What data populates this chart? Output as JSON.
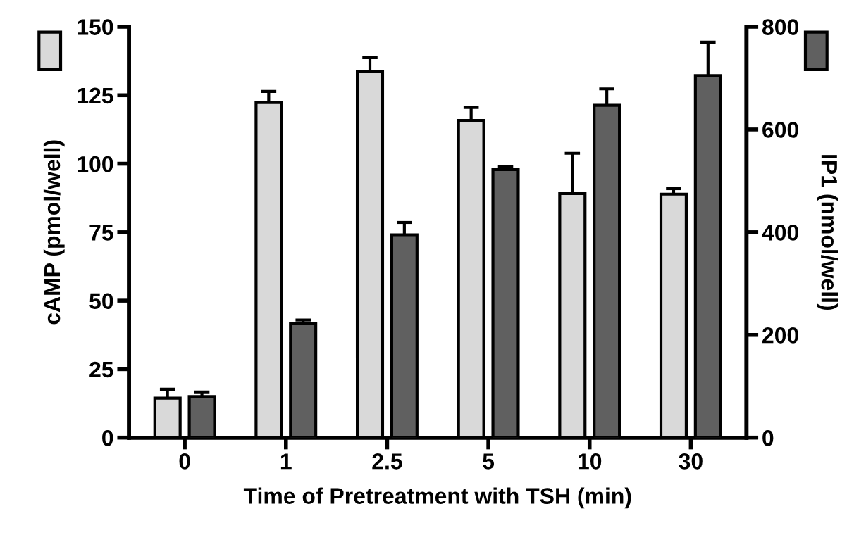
{
  "chart_data": {
    "type": "bar",
    "xlabel": "Time of Pretreatment with TSH (min)",
    "ylabel": "cAMP (pmol/well)",
    "y2label": "IP1 (nmol/well)",
    "categories": [
      "0",
      "1",
      "2.5",
      "5",
      "10",
      "30"
    ],
    "series": [
      {
        "color": "#d9d9d9",
        "values": [
          14.4,
          122.3,
          133.8,
          115.8,
          89.1,
          88.9
        ],
        "errors": [
          3.3,
          4.1,
          4.9,
          4.7,
          14.7,
          2.0
        ]
      },
      {
        "color": "#606060",
        "axis": "y2",
        "values": [
          80,
          223,
          395,
          522,
          647,
          705
        ],
        "errors": [
          9,
          6,
          24,
          5,
          32,
          65
        ]
      }
    ],
    "ylim": [
      0,
      150
    ],
    "yticks": [
      0,
      25,
      50,
      75,
      100,
      125,
      150
    ],
    "y2lim": [
      0,
      800
    ],
    "y2ticks": [
      0,
      200,
      400,
      600,
      800
    ],
    "grid": false,
    "legend": false
  }
}
